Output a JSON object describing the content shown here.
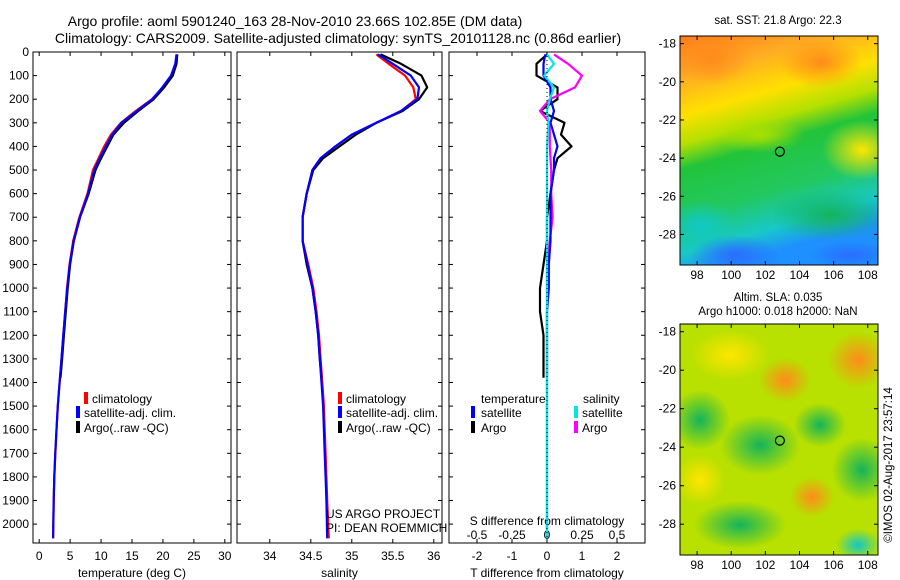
{
  "title": {
    "line1": "Argo profile: aoml 5901240_163 28-Nov-2010 23.66S 102.85E (DM data)",
    "line2": "Climatology: CARS2009. Satellite-adjusted climatology: synTS_20101128.nc (0.86d earlier)"
  },
  "colors": {
    "climatology": "#ff0000",
    "satellite": "#0000ff",
    "argo": "#000000",
    "sal_satellite": "#00e5e5",
    "sal_argo": "#ff00ff"
  },
  "depth_axis": {
    "ylim": [
      0,
      2080
    ],
    "ticks": [
      0,
      100,
      200,
      300,
      400,
      500,
      600,
      700,
      800,
      900,
      1000,
      1100,
      1200,
      1300,
      1400,
      1500,
      1600,
      1700,
      1800,
      1900,
      2000
    ]
  },
  "chart_data": [
    {
      "type": "line",
      "id": "temperature",
      "xlabel": "temperature (deg C)",
      "xlim": [
        -1,
        31
      ],
      "ylim": [
        0,
        2080
      ],
      "xticks": [
        0,
        5,
        10,
        15,
        20,
        25,
        30
      ],
      "legend": [
        "climatology",
        "satellite-adj. clim.",
        "Argo(..raw -QC)"
      ],
      "series": [
        {
          "name": "climatology",
          "x": [
            22.3,
            22.1,
            21.4,
            20.0,
            18.2,
            15.6,
            13.2,
            11.6,
            10.5,
            9.6,
            8.7,
            7.8,
            6.5,
            5.5,
            4.9,
            4.5,
            4.2,
            3.9,
            3.6,
            3.3,
            3.0,
            2.8,
            2.6,
            2.45,
            2.35,
            2.25
          ],
          "y": [
            10,
            50,
            100,
            150,
            200,
            250,
            300,
            350,
            400,
            450,
            500,
            600,
            700,
            800,
            900,
            1000,
            1100,
            1200,
            1300,
            1400,
            1500,
            1600,
            1700,
            1800,
            1900,
            2060
          ]
        },
        {
          "name": "satellite-adj. clim.",
          "x": [
            22.2,
            22.0,
            21.3,
            19.9,
            18.3,
            15.8,
            13.3,
            11.8,
            10.8,
            9.8,
            8.9,
            7.9,
            6.6,
            5.6,
            4.95,
            4.55,
            4.2,
            3.9,
            3.6,
            3.3,
            3.0,
            2.8,
            2.6,
            2.45,
            2.35,
            2.25
          ],
          "y": [
            10,
            50,
            100,
            150,
            200,
            250,
            300,
            350,
            400,
            450,
            500,
            600,
            700,
            800,
            900,
            1000,
            1100,
            1200,
            1300,
            1400,
            1500,
            1600,
            1700,
            1800,
            1900,
            2060
          ]
        },
        {
          "name": "Argo(..raw -QC)",
          "x": [
            22.3,
            22.2,
            21.6,
            20.2,
            18.5,
            16.0,
            13.7,
            12.0,
            11.0,
            10.0,
            9.1,
            8.0,
            6.6,
            5.6,
            5.0,
            4.6,
            4.3,
            4.0,
            3.7,
            3.45
          ],
          "y": [
            10,
            50,
            100,
            150,
            200,
            250,
            300,
            350,
            400,
            450,
            500,
            600,
            700,
            800,
            900,
            1000,
            1100,
            1200,
            1300,
            1380
          ]
        }
      ]
    },
    {
      "type": "line",
      "id": "salinity",
      "xlabel": "salinity",
      "xlim": [
        33.6,
        36.1
      ],
      "ylim": [
        0,
        2080
      ],
      "xticks": [
        34,
        34.5,
        35,
        35.5,
        36
      ],
      "legend": [
        "climatology",
        "satellite-adj. clim.",
        "Argo(..raw -QC)"
      ],
      "series": [
        {
          "name": "climatology",
          "x": [
            35.3,
            35.45,
            35.65,
            35.75,
            35.78,
            35.6,
            35.3,
            35.0,
            34.8,
            34.62,
            34.52,
            34.45,
            34.4,
            34.4,
            34.47,
            34.53,
            34.57,
            34.6,
            34.62,
            34.64,
            34.66,
            34.67,
            34.68,
            34.69,
            34.7,
            34.72
          ],
          "y": [
            10,
            50,
            100,
            150,
            200,
            250,
            300,
            350,
            400,
            450,
            500,
            600,
            700,
            800,
            900,
            1000,
            1100,
            1200,
            1300,
            1400,
            1500,
            1600,
            1700,
            1800,
            1900,
            2060
          ]
        },
        {
          "name": "satellite-adj. clim.",
          "x": [
            35.32,
            35.5,
            35.72,
            35.82,
            35.8,
            35.6,
            35.3,
            35.0,
            34.8,
            34.62,
            34.52,
            34.45,
            34.4,
            34.4,
            34.46,
            34.52,
            34.56,
            34.59,
            34.61,
            34.63,
            34.65,
            34.66,
            34.67,
            34.68,
            34.69,
            34.7
          ],
          "y": [
            10,
            50,
            100,
            150,
            200,
            250,
            300,
            350,
            400,
            450,
            500,
            600,
            700,
            800,
            900,
            1000,
            1100,
            1200,
            1300,
            1400,
            1500,
            1600,
            1700,
            1800,
            1900,
            2060
          ]
        },
        {
          "name": "Argo(..raw -QC)",
          "x": [
            35.35,
            35.6,
            35.85,
            35.92,
            35.82,
            35.62,
            35.3,
            35.05,
            34.85,
            34.65,
            34.53,
            34.45,
            34.4,
            34.4,
            34.45,
            34.52,
            34.56,
            34.59,
            34.61,
            34.63
          ],
          "y": [
            10,
            50,
            100,
            150,
            200,
            250,
            300,
            350,
            400,
            450,
            500,
            600,
            700,
            800,
            900,
            1000,
            1100,
            1200,
            1300,
            1380
          ]
        }
      ],
      "annotation": [
        "US ARGO PROJECT",
        "PI: DEAN ROEMMICH"
      ]
    },
    {
      "type": "line",
      "id": "difference",
      "xlabel": "T difference from climatology",
      "xlabel_top": "S difference from climatology",
      "xlim": [
        -2.8,
        2.8
      ],
      "ylim": [
        0,
        2080
      ],
      "xticks": [
        -2,
        -1,
        0,
        1,
        2
      ],
      "xticks_top": [
        -0.5,
        -0.25,
        0,
        0.25,
        0.5
      ],
      "legend_headers": [
        "temperature",
        "salinity"
      ],
      "legend": [
        "satellite",
        "Argo",
        "satellite",
        "Argo"
      ],
      "series": [
        {
          "name": "T satellite",
          "x": [
            -0.05,
            -0.1,
            -0.1,
            0.1,
            0.1,
            0.2,
            0.1,
            0.2,
            0.3,
            0.2,
            0.2,
            0.1,
            0.1,
            0.1,
            0.05,
            0.05,
            0.0,
            0.0,
            0.0,
            0.0,
            0.0,
            0.0,
            0.0,
            0.0
          ],
          "y": [
            10,
            50,
            100,
            150,
            200,
            250,
            300,
            350,
            400,
            450,
            500,
            600,
            700,
            800,
            900,
            1000,
            1100,
            1200,
            1300,
            1500,
            1700,
            1800,
            1900,
            2060
          ]
        },
        {
          "name": "T Argo",
          "x": [
            0.0,
            -0.3,
            -0.3,
            0.3,
            0.3,
            -0.2,
            0.5,
            0.4,
            0.7,
            0.3,
            0.2,
            0.1,
            0.0,
            0.0,
            -0.1,
            -0.2,
            -0.2,
            -0.1,
            -0.1
          ],
          "y": [
            10,
            50,
            100,
            150,
            200,
            250,
            300,
            350,
            400,
            450,
            500,
            600,
            700,
            800,
            900,
            1000,
            1100,
            1200,
            1380
          ]
        },
        {
          "name": "S satellite",
          "x": [
            0.0,
            0.05,
            -0.02,
            0.05,
            0.02,
            0.0,
            0.01,
            0.0,
            0.0,
            0.0,
            0.0,
            0.0,
            0.0,
            0.0,
            0.0,
            0.0,
            0.0,
            0.0,
            0.0
          ],
          "y": [
            10,
            50,
            100,
            150,
            200,
            250,
            300,
            400,
            500,
            600,
            700,
            800,
            900,
            1000,
            1200,
            1400,
            1600,
            1800,
            2060
          ]
        },
        {
          "name": "S Argo",
          "x": [
            0.05,
            0.15,
            0.25,
            0.2,
            0.02,
            -0.05,
            0.02,
            0.02,
            0.03,
            0.03,
            0.04,
            0.02,
            0.0,
            0.0,
            0.0,
            0.0,
            0.0
          ],
          "y": [
            10,
            50,
            100,
            150,
            200,
            250,
            300,
            400,
            500,
            600,
            700,
            800,
            900,
            1000,
            1100,
            1200,
            1380
          ]
        }
      ]
    },
    {
      "type": "heatmap",
      "id": "sst_map",
      "title": "sat. SST: 21.8  Argo: 22.3",
      "xticks": [
        98,
        100,
        102,
        104,
        106,
        108
      ],
      "yticks": [
        -18,
        -20,
        -22,
        -24,
        -26,
        -28
      ],
      "xlim": [
        97,
        108.6
      ],
      "ylim": [
        -29.6,
        -17.6
      ],
      "marker": {
        "lon": 102.85,
        "lat": -23.66
      }
    },
    {
      "type": "heatmap",
      "id": "sla_map",
      "title": "Altim. SLA: 0.035",
      "subtitle": "Argo h1000: 0.018 h2000: NaN",
      "xticks": [
        98,
        100,
        102,
        104,
        106,
        108
      ],
      "yticks": [
        -18,
        -20,
        -22,
        -24,
        -26,
        -28
      ],
      "xlim": [
        97,
        108.6
      ],
      "ylim": [
        -29.6,
        -17.6
      ],
      "marker": {
        "lon": 102.85,
        "lat": -23.66
      }
    }
  ],
  "credit": "©IMOS 02-Aug-2017 23:57:14"
}
